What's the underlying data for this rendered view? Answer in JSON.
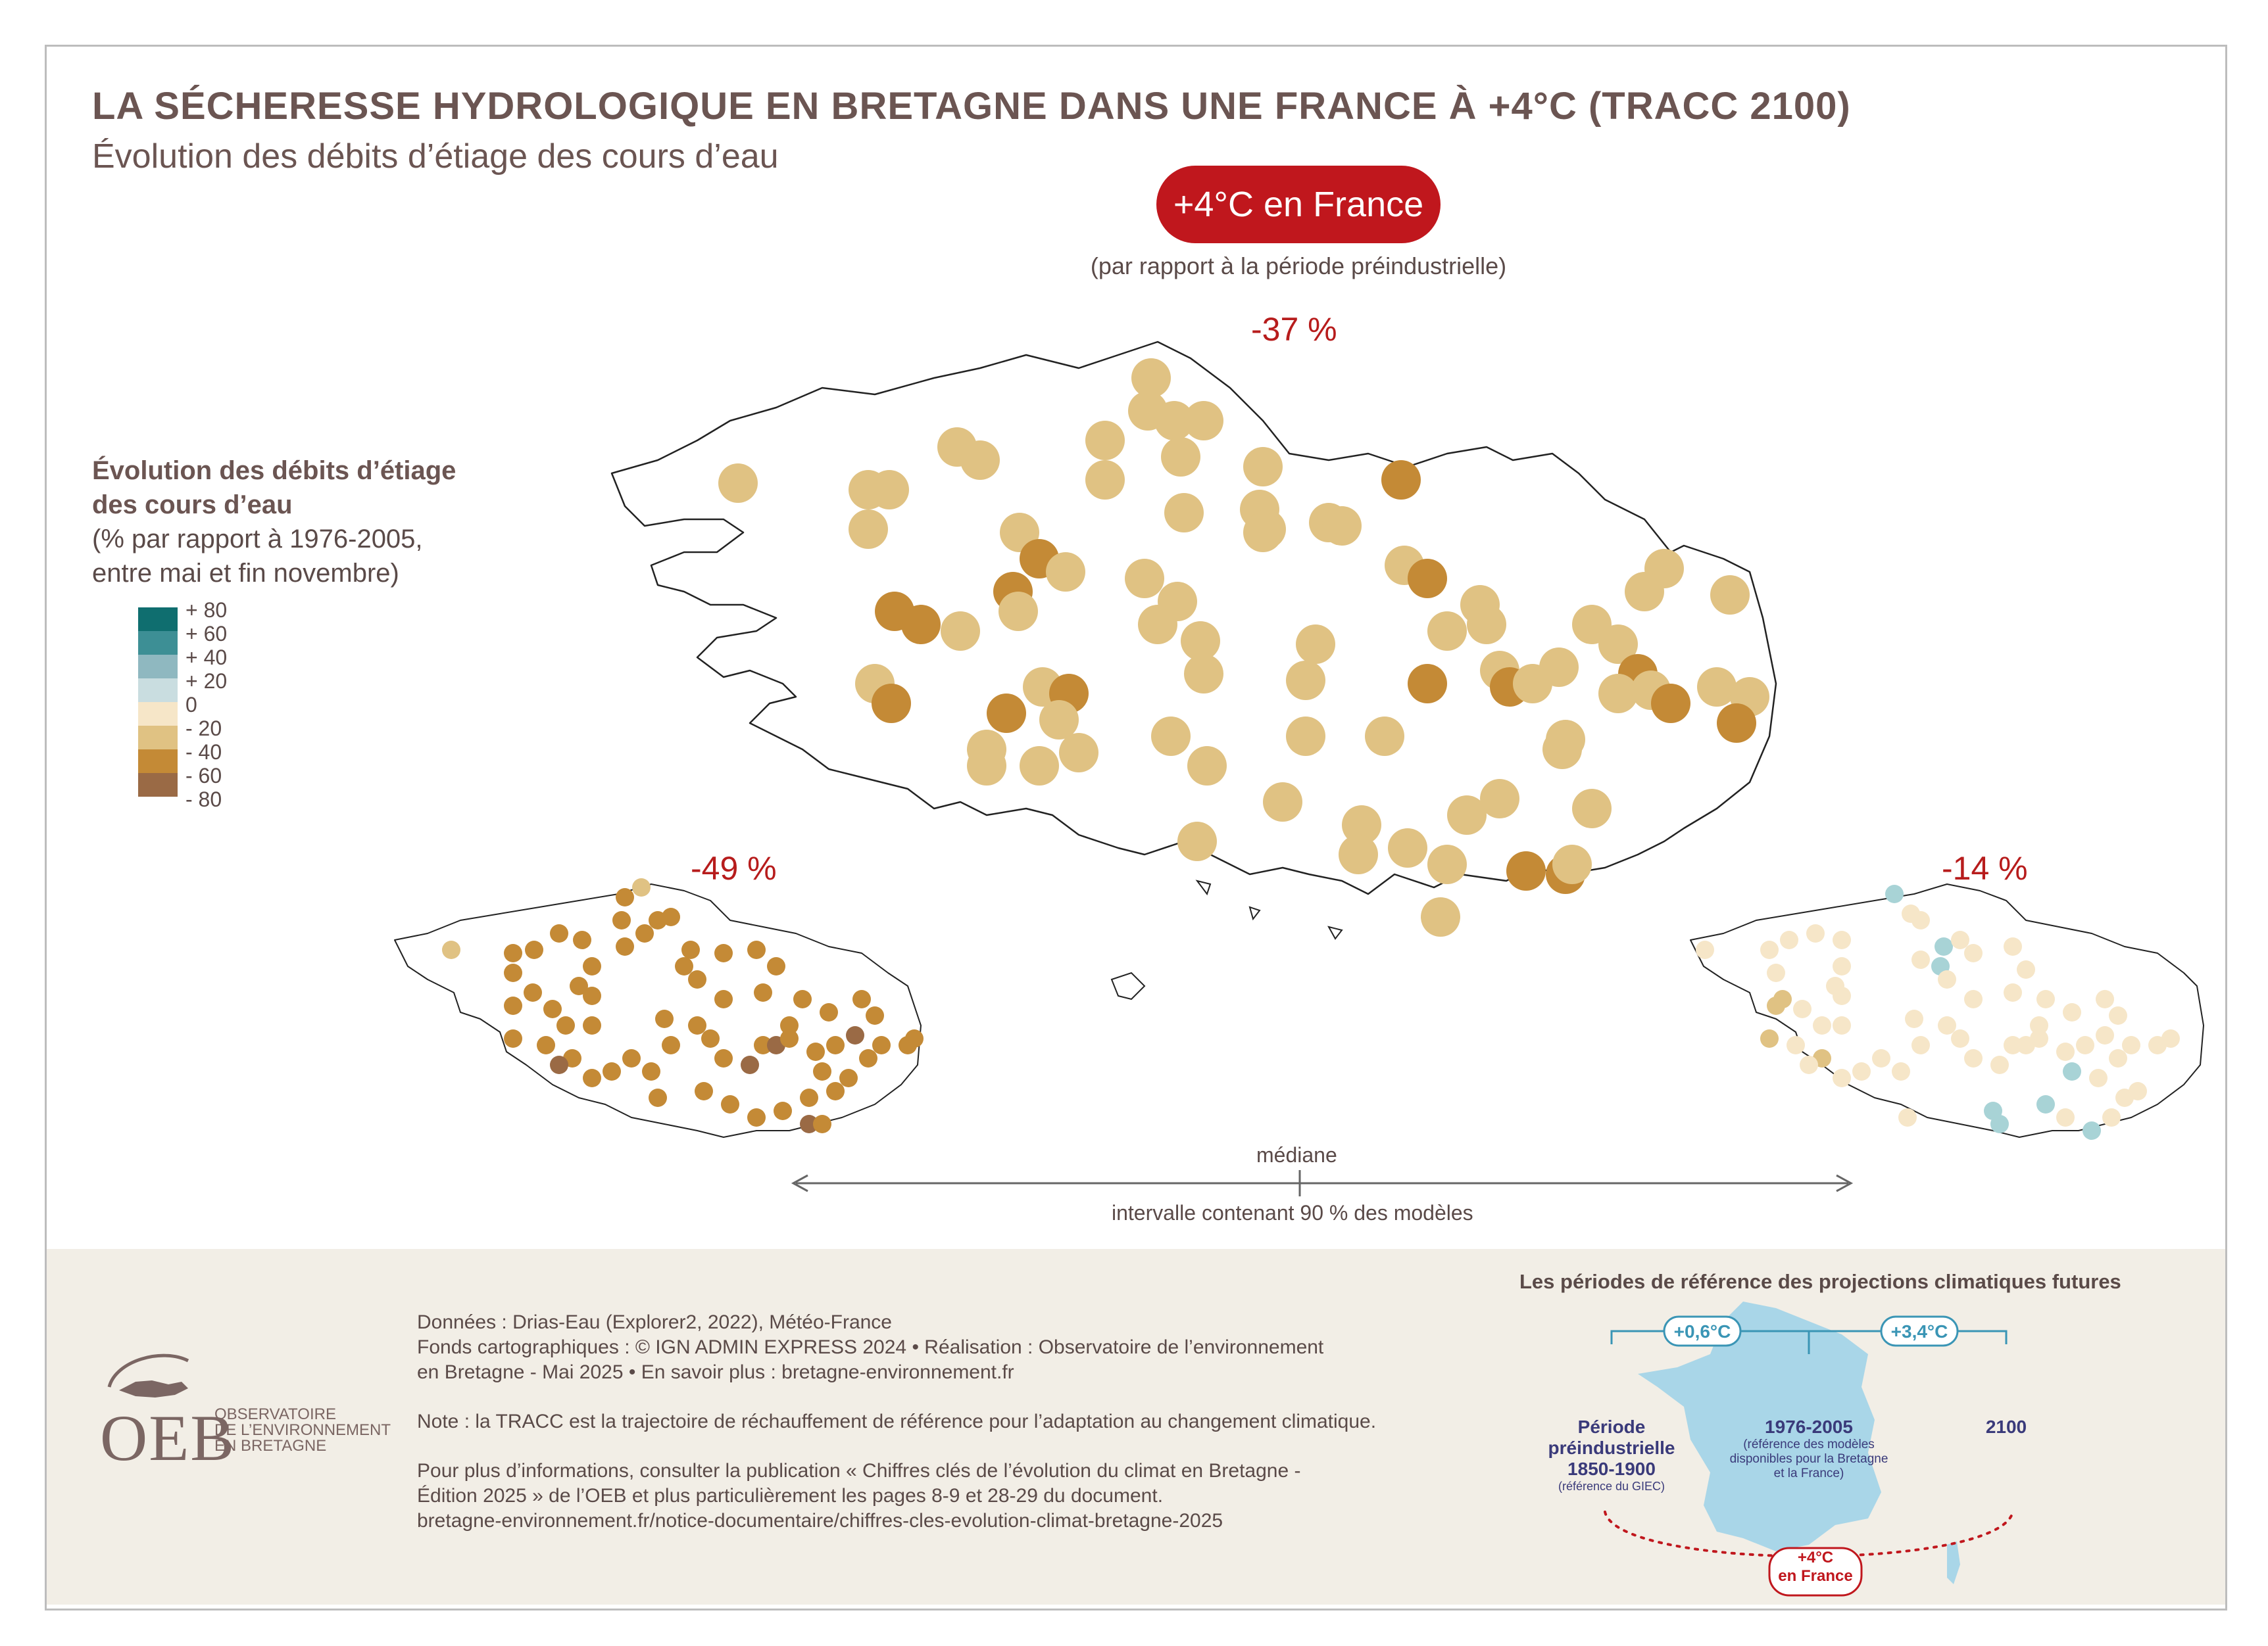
{
  "header": {
    "title": "LA SÉCHERESSE HYDROLOGIQUE EN BRETAGNE DANS UNE FRANCE À +4°C (TRACC 2100)",
    "subtitle": "Évolution des débits d’étiage des cours d’eau"
  },
  "scenario": {
    "badge": "+4°C en France",
    "note": "(par rapport à la période préindustrielle)"
  },
  "maps": {
    "median_value": "-37 %",
    "low_value": "-49 %",
    "high_value": "-14 %"
  },
  "legend": {
    "title_line1": "Évolution des débits d’étiage",
    "title_line2": "des cours d’eau",
    "note_line1": "(% par rapport à 1976-2005,",
    "note_line2": "entre mai et fin novembre)",
    "labels": [
      "+ 80",
      "+ 60",
      "+ 40",
      "+ 20",
      "0",
      "- 20",
      "- 40",
      "- 60",
      "- 80"
    ],
    "colors": [
      "#0f6e6f",
      "#3d8f95",
      "#8fb8c0",
      "#c9dde0",
      "#f6e6c8",
      "#e0c283",
      "#c48a36",
      "#9a6a45"
    ]
  },
  "axis": {
    "median_label": "médiane",
    "interval_label": "intervalle contenant 90 % des modèles"
  },
  "footer": {
    "sources_line1": "Données : Drias-Eau (Explorer2, 2022), Météo-France",
    "sources_line2": "Fonds cartographiques : © IGN ADMIN EXPRESS 2024 • Réalisation : Observatoire de l’environnement",
    "sources_line3": "en Bretagne - Mai 2025 • En savoir plus : bretagne-environnement.fr",
    "note": "Note : la TRACC est la trajectoire de réchauffement de référence pour l’adaptation au changement climatique.",
    "info_line1": "Pour plus d’informations, consulter la publication « Chiffres clés de l’évolution du climat en Bretagne -",
    "info_line2": "Édition 2025 » de l’OEB et plus particulièrement les pages 8-9 et 28-29 du document.",
    "info_line3": "bretagne-environnement.fr/notice-documentaire/chiffres-cles-evolution-climat-bretagne-2025"
  },
  "logo": {
    "acronym": "OEB",
    "line1": "OBSERVATOIRE",
    "line2": "DE L’ENVIRONNEMENT",
    "line3": "EN BRETAGNE"
  },
  "periods": {
    "title": "Les périodes de référence des projections climatiques futures",
    "delta1": "+0,6°C",
    "delta2": "+3,4°C",
    "pre_line1": "Période",
    "pre_line2": "préindustrielle",
    "pre_line3": "1850-1900",
    "pre_note": "(référence du GIEC)",
    "ref_line1": "1976-2005",
    "ref_note1": "(référence des modèles",
    "ref_note2": "disponibles pour la Bretagne",
    "ref_note3": "et la France)",
    "future": "2100",
    "badge_line1": "+4°C",
    "badge_line2": "en France"
  }
}
